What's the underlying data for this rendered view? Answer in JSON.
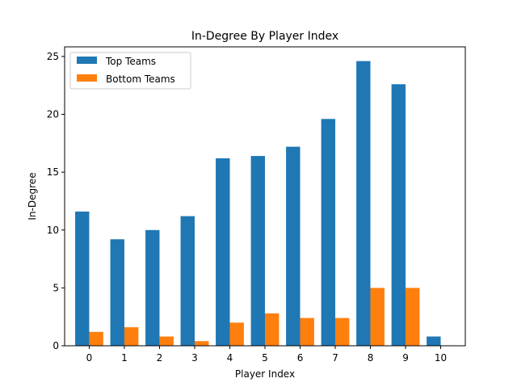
{
  "colors": {
    "top": "#1f77b4",
    "bottom": "#ff7f0e"
  },
  "chart_data": {
    "type": "bar",
    "title": "In-Degree By Player Index",
    "xlabel": "Player Index",
    "ylabel": "In-Degree",
    "categories": [
      "0",
      "1",
      "2",
      "3",
      "4",
      "5",
      "6",
      "7",
      "8",
      "9",
      "10"
    ],
    "series": [
      {
        "name": "Top Teams",
        "values": [
          11.6,
          9.2,
          10.0,
          11.2,
          16.2,
          16.4,
          17.2,
          19.6,
          24.6,
          22.6,
          0.8
        ]
      },
      {
        "name": "Bottom Teams",
        "values": [
          1.2,
          1.6,
          0.8,
          0.4,
          2.0,
          2.8,
          2.4,
          2.4,
          5.0,
          5.0,
          0
        ]
      }
    ],
    "ylim": [
      0,
      25.83
    ],
    "yticks": [
      0,
      5,
      10,
      15,
      20,
      25
    ],
    "grid": false,
    "legend": "top-left"
  }
}
